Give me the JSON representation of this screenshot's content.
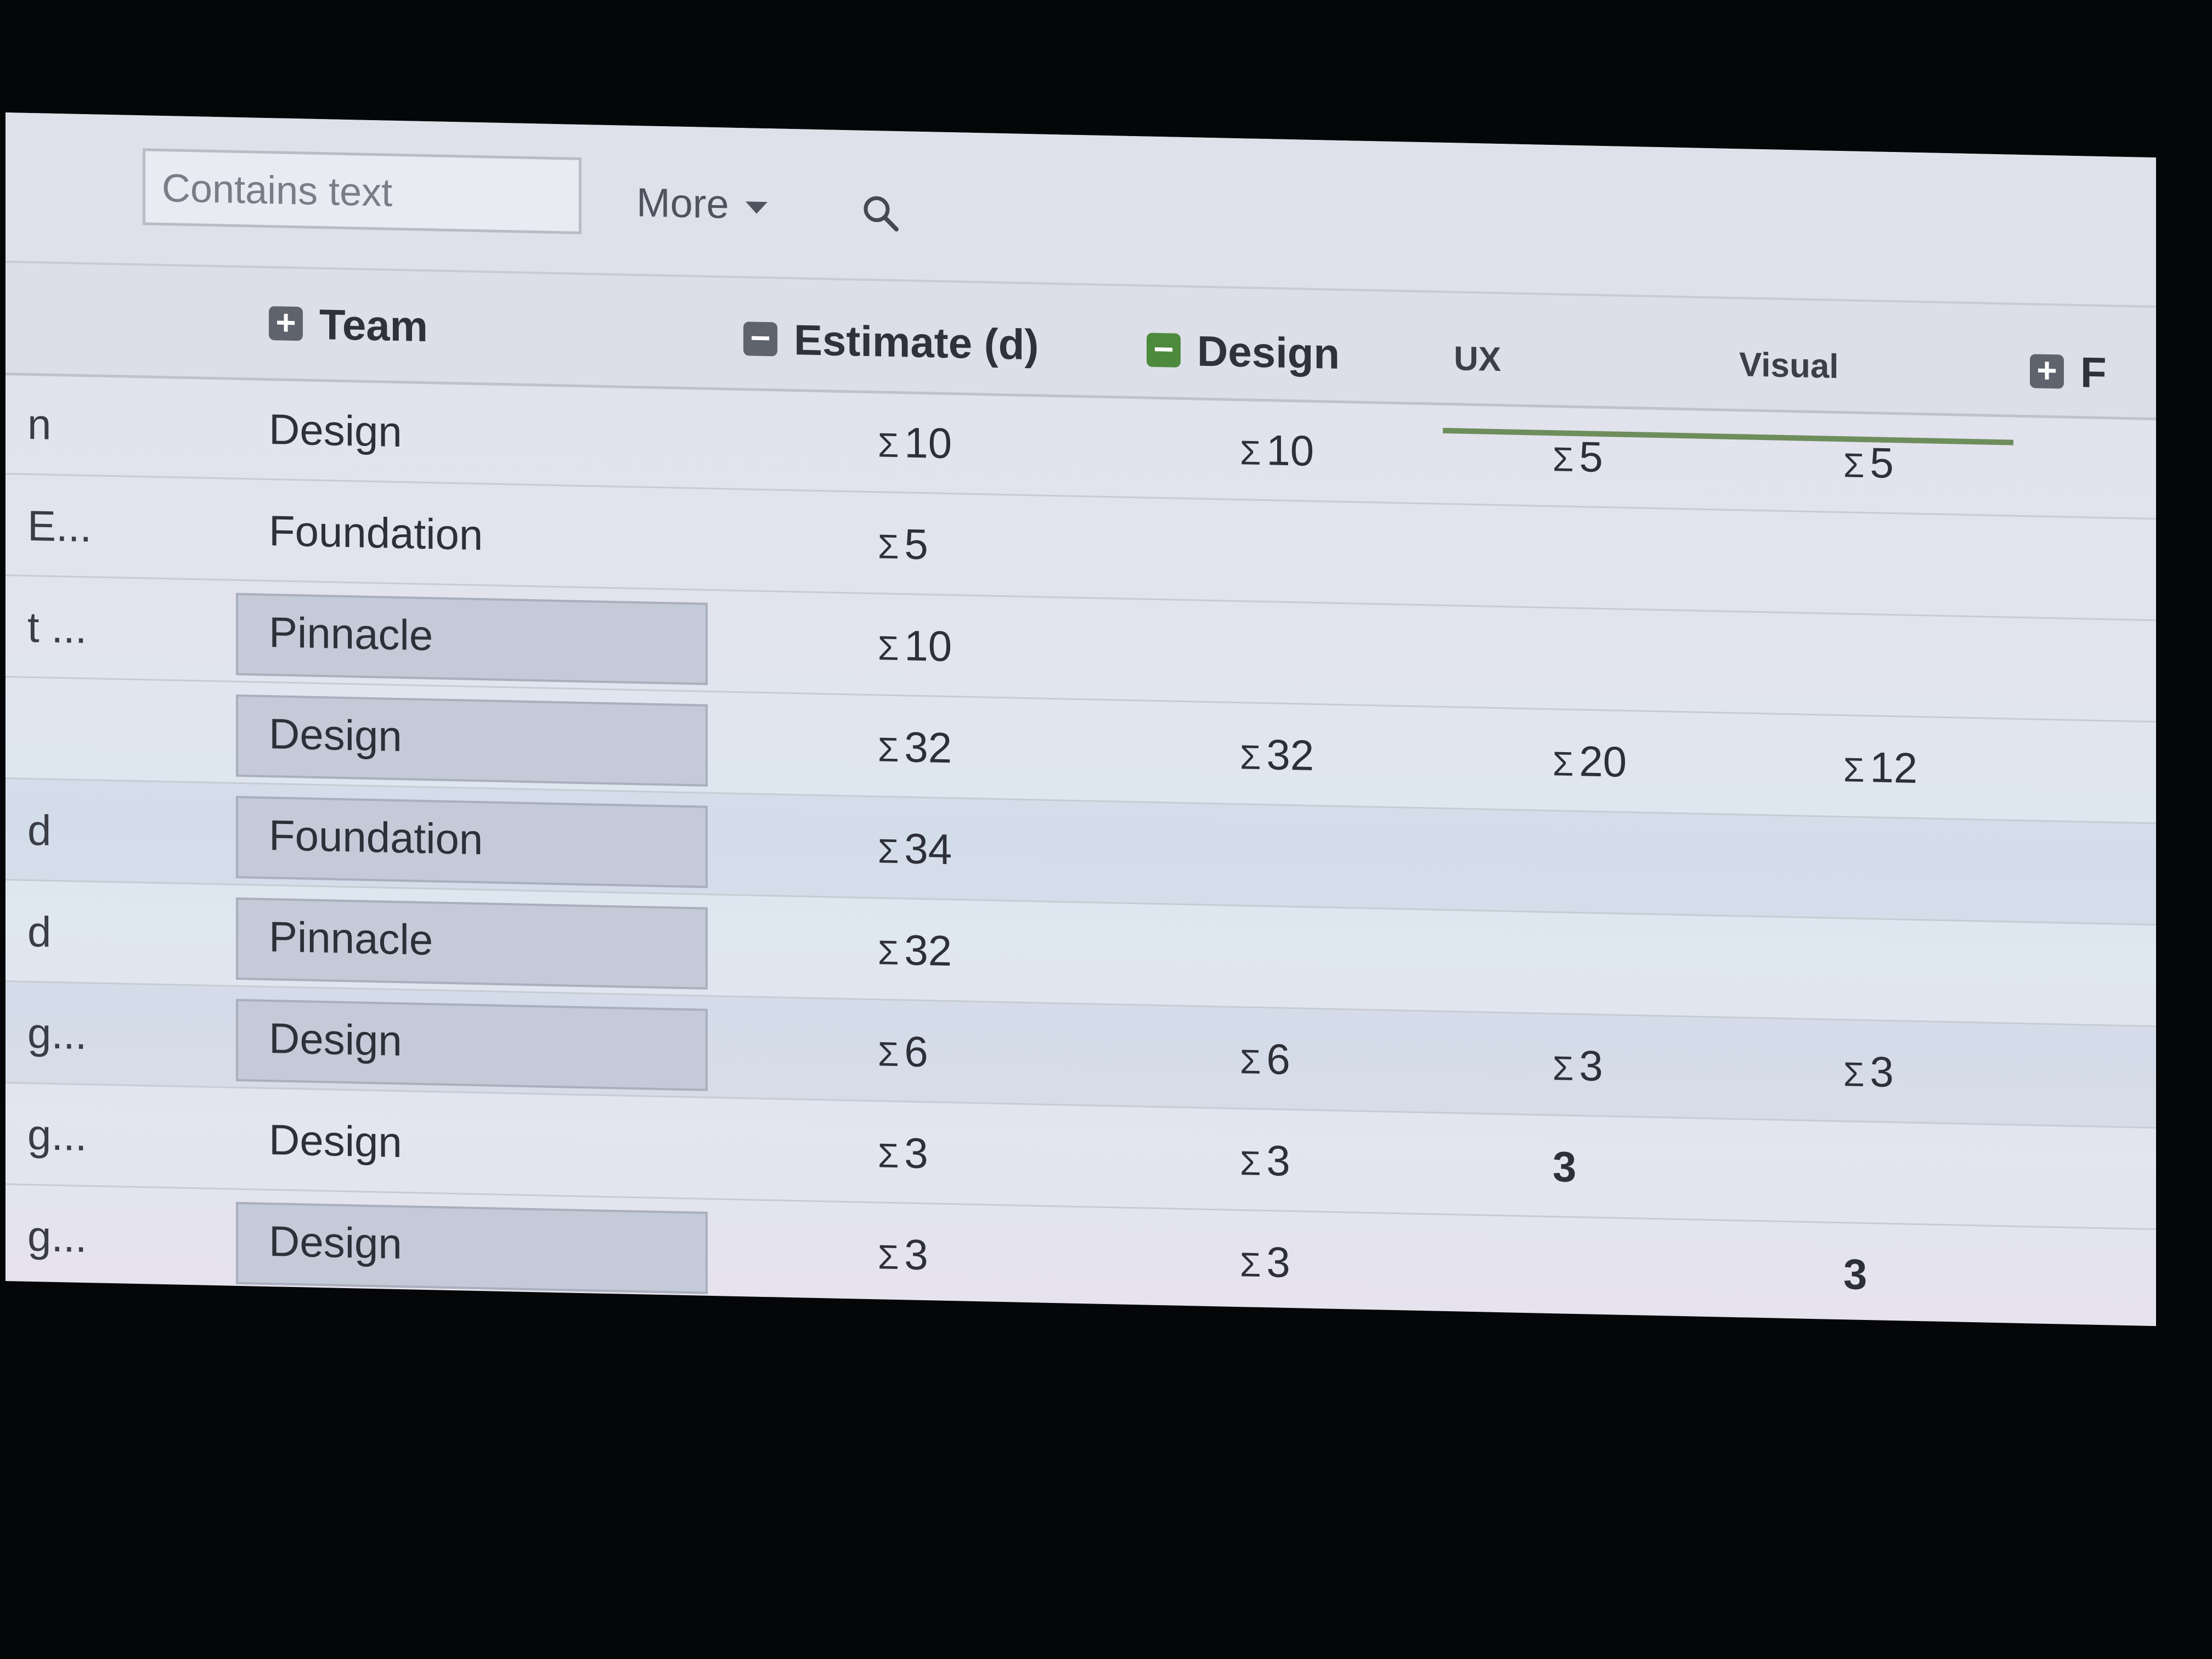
{
  "toolbar": {
    "search_placeholder": "Contains text",
    "more_label": "More"
  },
  "header": {
    "team": "Team",
    "estimate": "Estimate (d)",
    "design": "Design",
    "ux": "UX",
    "visual": "Visual",
    "next_partial": "F"
  },
  "rows": [
    {
      "left": "n",
      "team": "Design",
      "estimate": "10",
      "design": "10",
      "ux": "5",
      "visual": "5",
      "boxed": false,
      "sum_ux": true,
      "sum_visual": true
    },
    {
      "left": "E...",
      "team": "Foundation",
      "estimate": "5",
      "design": "",
      "ux": "",
      "visual": "",
      "boxed": false,
      "sum_ux": true,
      "sum_visual": true
    },
    {
      "left": "t ...",
      "team": "Pinnacle",
      "estimate": "10",
      "design": "",
      "ux": "",
      "visual": "",
      "boxed": true,
      "sum_ux": true,
      "sum_visual": true
    },
    {
      "left": "",
      "team": "Design",
      "estimate": "32",
      "design": "32",
      "ux": "20",
      "visual": "12",
      "boxed": true,
      "sum_ux": true,
      "sum_visual": true
    },
    {
      "left": "d",
      "team": "Foundation",
      "estimate": "34",
      "design": "",
      "ux": "",
      "visual": "",
      "boxed": true,
      "sum_ux": true,
      "sum_visual": true
    },
    {
      "left": "d",
      "team": "Pinnacle",
      "estimate": "32",
      "design": "",
      "ux": "",
      "visual": "",
      "boxed": true,
      "sum_ux": true,
      "sum_visual": true
    },
    {
      "left": "g...",
      "team": "Design",
      "estimate": "6",
      "design": "6",
      "ux": "3",
      "visual": "3",
      "boxed": true,
      "sum_ux": true,
      "sum_visual": true
    },
    {
      "left": "g...",
      "team": "Design",
      "estimate": "3",
      "design": "3",
      "ux": "3",
      "visual": "",
      "boxed": false,
      "sum_ux": false,
      "sum_visual": true
    },
    {
      "left": "g...",
      "team": "Design",
      "estimate": "3",
      "design": "3",
      "ux": "",
      "visual": "3",
      "boxed": true,
      "sum_ux": true,
      "sum_visual": false
    }
  ],
  "sum_symbol": "Σ",
  "colors": {
    "accent_green": "#4e8a3e",
    "toggle_gray": "#5f636d"
  }
}
